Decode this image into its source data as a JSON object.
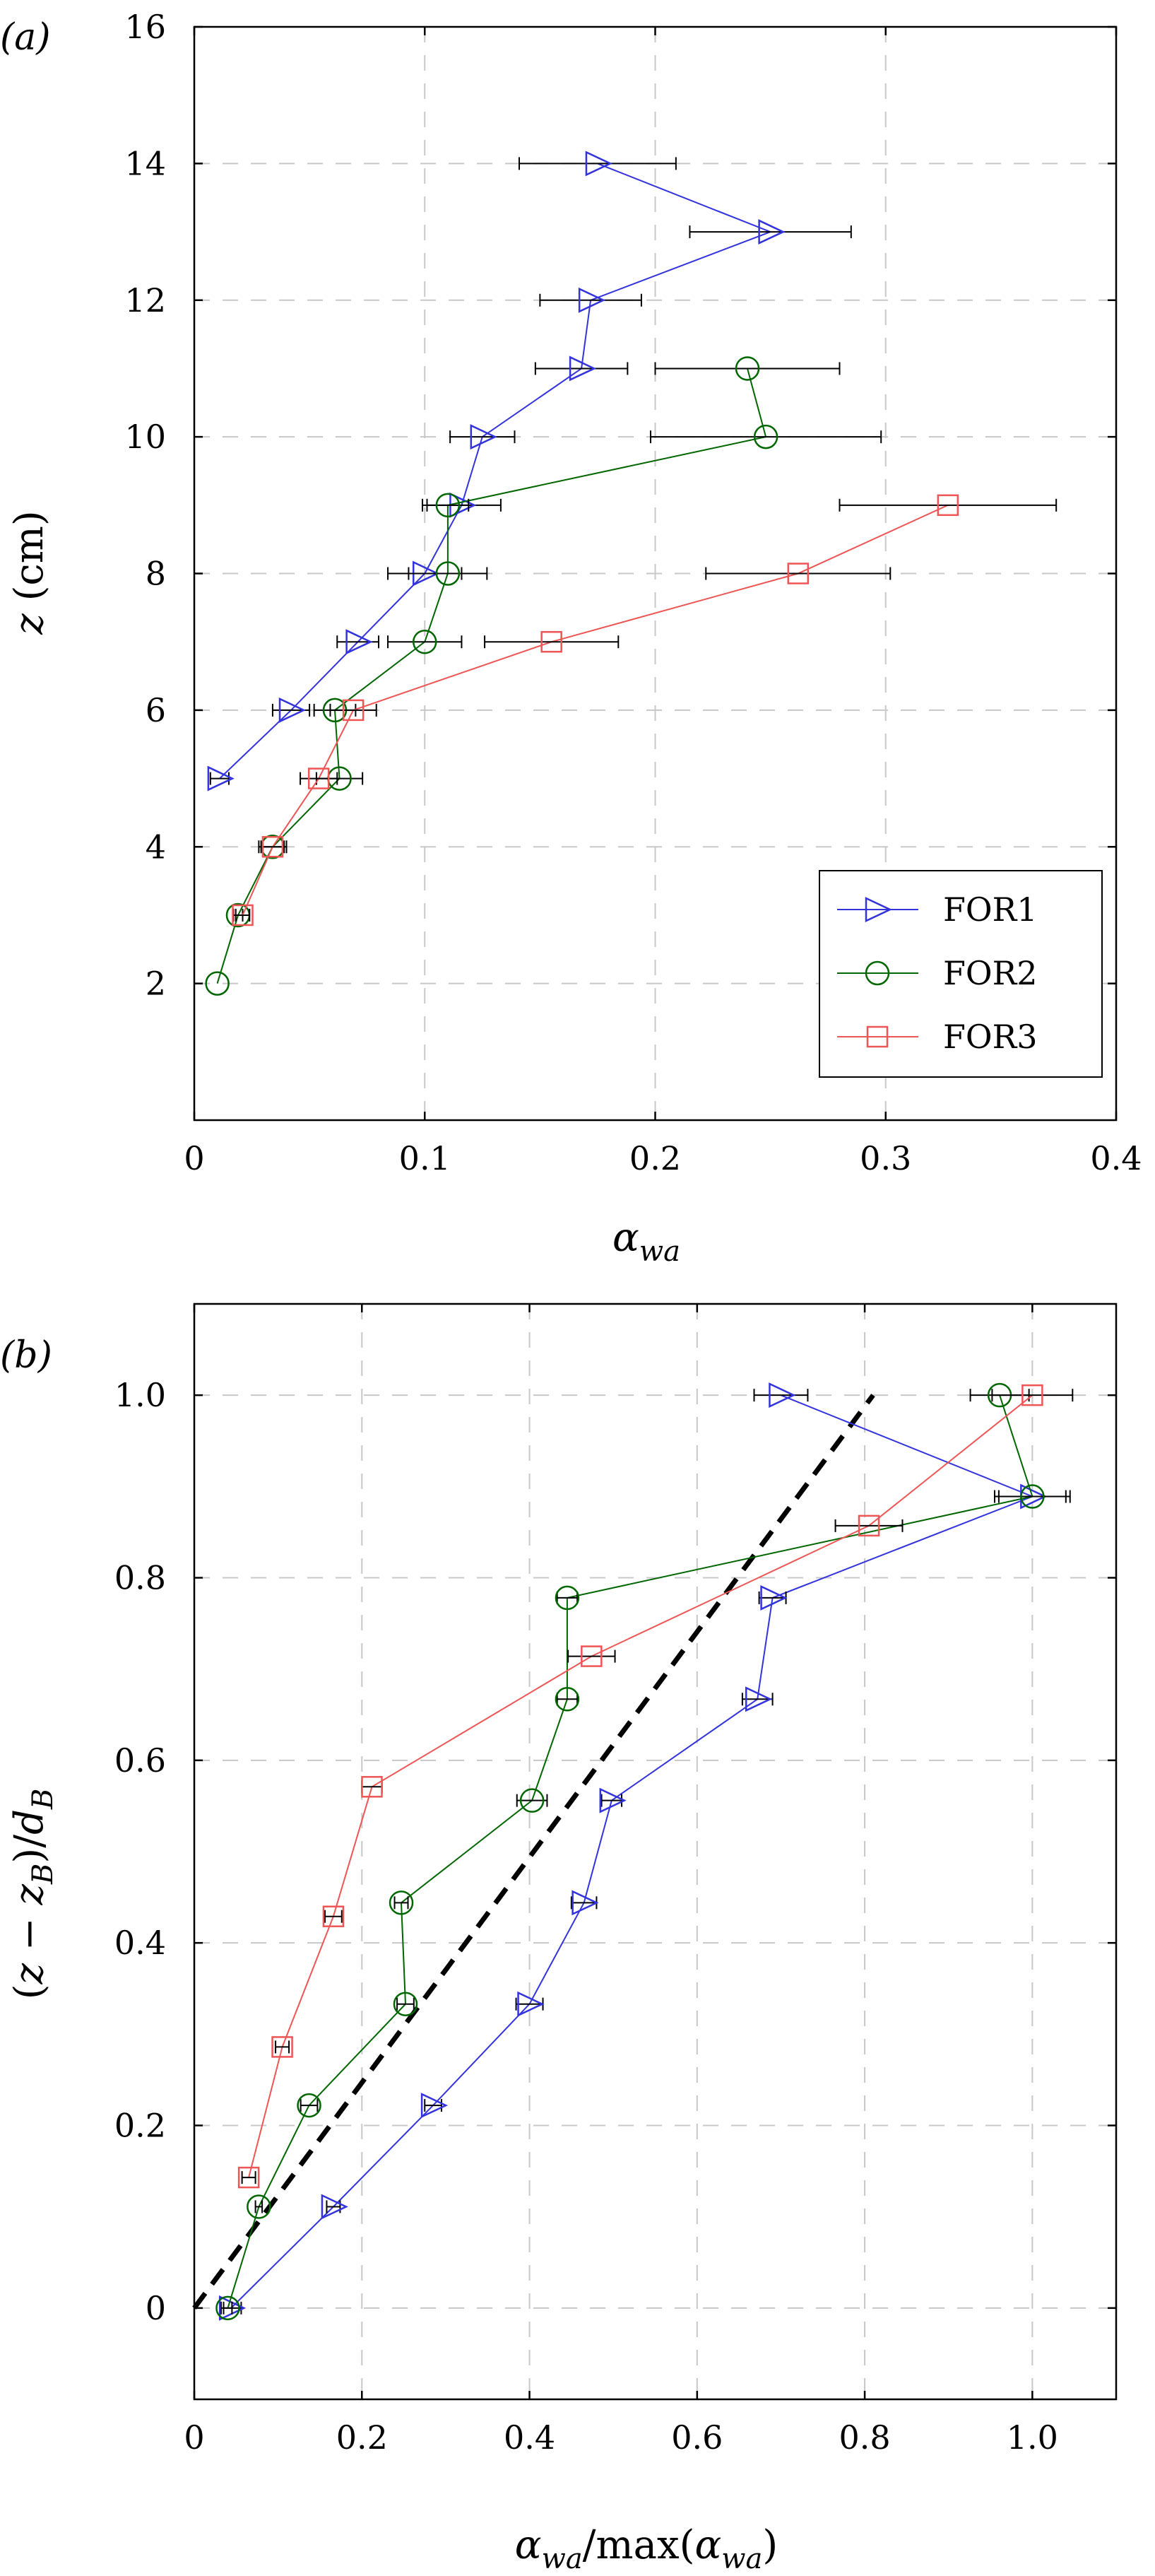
{
  "chart_data": [
    {
      "type": "line",
      "panel_label": "(a)",
      "xlabel": "α_wa",
      "ylabel": "z (cm)",
      "xlim": [
        0,
        0.4
      ],
      "ylim": [
        0,
        16
      ],
      "x_ticks": [
        0,
        0.1,
        0.2,
        0.3,
        0.4
      ],
      "x_tick_labels": [
        "0",
        "0.1",
        "0.2",
        "0.3",
        "0.4"
      ],
      "y_ticks": [
        2,
        4,
        6,
        8,
        10,
        12,
        14,
        16
      ],
      "y_tick_labels": [
        "2",
        "4",
        "6",
        "8",
        "10",
        "12",
        "14",
        "16"
      ],
      "grid": true,
      "legend_position": "lower-right",
      "series": [
        {
          "name": "FOR1",
          "color": "#3333dd",
          "marker": "triangle-right",
          "points": [
            {
              "x": 0.011,
              "y": 5,
              "err": 0.004
            },
            {
              "x": 0.042,
              "y": 6,
              "err": 0.008
            },
            {
              "x": 0.071,
              "y": 7,
              "err": 0.009
            },
            {
              "x": 0.1,
              "y": 8,
              "err": 0.016
            },
            {
              "x": 0.116,
              "y": 9,
              "err": 0.017
            },
            {
              "x": 0.125,
              "y": 10,
              "err": 0.014
            },
            {
              "x": 0.168,
              "y": 11,
              "err": 0.02
            },
            {
              "x": 0.172,
              "y": 12,
              "err": 0.022
            },
            {
              "x": 0.25,
              "y": 13,
              "err": 0.035
            },
            {
              "x": 0.175,
              "y": 14,
              "err": 0.034
            }
          ]
        },
        {
          "name": "FOR2",
          "color": "#006600",
          "marker": "circle",
          "points": [
            {
              "x": 0.01,
              "y": 2,
              "err": 0.0
            },
            {
              "x": 0.019,
              "y": 3,
              "err": 0.002
            },
            {
              "x": 0.034,
              "y": 4,
              "err": 0.006
            },
            {
              "x": 0.063,
              "y": 5,
              "err": 0.01
            },
            {
              "x": 0.061,
              "y": 6,
              "err": 0.009
            },
            {
              "x": 0.1,
              "y": 7,
              "err": 0.016
            },
            {
              "x": 0.11,
              "y": 8,
              "err": 0.017
            },
            {
              "x": 0.11,
              "y": 9,
              "err": 0.009
            },
            {
              "x": 0.248,
              "y": 10,
              "err": 0.05
            },
            {
              "x": 0.24,
              "y": 11,
              "err": 0.04
            }
          ]
        },
        {
          "name": "FOR3",
          "color": "#ee5555",
          "marker": "square",
          "points": [
            {
              "x": 0.021,
              "y": 3,
              "err": 0.003
            },
            {
              "x": 0.034,
              "y": 4,
              "err": 0.005
            },
            {
              "x": 0.054,
              "y": 5,
              "err": 0.008
            },
            {
              "x": 0.069,
              "y": 6,
              "err": 0.01
            },
            {
              "x": 0.155,
              "y": 7,
              "err": 0.029
            },
            {
              "x": 0.262,
              "y": 8,
              "err": 0.04
            },
            {
              "x": 0.327,
              "y": 9,
              "err": 0.047
            }
          ]
        }
      ]
    },
    {
      "type": "line",
      "panel_label": "(b)",
      "xlabel": "α_wa / max(α_wa)",
      "ylabel": "(z − z_B)/d_B",
      "xlim": [
        0,
        1.1
      ],
      "ylim": [
        -0.1,
        1.1
      ],
      "x_ticks": [
        0,
        0.2,
        0.4,
        0.6,
        0.8,
        1.0
      ],
      "x_tick_labels": [
        "0",
        "0.2",
        "0.4",
        "0.6",
        "0.8",
        "1.0"
      ],
      "y_ticks": [
        0,
        0.2,
        0.4,
        0.6,
        0.8,
        1.0
      ],
      "y_tick_labels": [
        "0",
        "0.2",
        "0.4",
        "0.6",
        "0.8",
        "1.0"
      ],
      "grid": true,
      "reference_line": {
        "style": "dashed",
        "color": "#000000",
        "x": [
          0,
          0.81
        ],
        "y": [
          0,
          1.0
        ]
      },
      "series": [
        {
          "name": "FOR1",
          "color": "#3333dd",
          "marker": "triangle-right",
          "points": [
            {
              "x": 0.044,
              "y": 0.0,
              "err": 0.012
            },
            {
              "x": 0.166,
              "y": 0.111,
              "err": 0.008
            },
            {
              "x": 0.285,
              "y": 0.222,
              "err": 0.01
            },
            {
              "x": 0.4,
              "y": 0.333,
              "err": 0.016
            },
            {
              "x": 0.465,
              "y": 0.444,
              "err": 0.015
            },
            {
              "x": 0.498,
              "y": 0.556,
              "err": 0.012
            },
            {
              "x": 0.672,
              "y": 0.667,
              "err": 0.018
            },
            {
              "x": 0.69,
              "y": 0.778,
              "err": 0.016
            },
            {
              "x": 1.0,
              "y": 0.889,
              "err": 0.045
            },
            {
              "x": 0.7,
              "y": 1.0,
              "err": 0.032
            }
          ]
        },
        {
          "name": "FOR2",
          "color": "#006600",
          "marker": "circle",
          "points": [
            {
              "x": 0.04,
              "y": 0.0,
              "err": 0.005
            },
            {
              "x": 0.077,
              "y": 0.111,
              "err": 0.004
            },
            {
              "x": 0.137,
              "y": 0.222,
              "err": 0.01
            },
            {
              "x": 0.252,
              "y": 0.333,
              "err": 0.01
            },
            {
              "x": 0.247,
              "y": 0.444,
              "err": 0.008
            },
            {
              "x": 0.403,
              "y": 0.556,
              "err": 0.018
            },
            {
              "x": 0.445,
              "y": 0.667,
              "err": 0.012
            },
            {
              "x": 0.445,
              "y": 0.778,
              "err": 0.012
            },
            {
              "x": 1.0,
              "y": 0.889,
              "err": 0.04
            },
            {
              "x": 0.961,
              "y": 1.0,
              "err": 0.035
            }
          ]
        },
        {
          "name": "FOR3",
          "color": "#ee5555",
          "marker": "square",
          "points": [
            {
              "x": 0.065,
              "y": 0.143,
              "err": 0.008
            },
            {
              "x": 0.105,
              "y": 0.286,
              "err": 0.008
            },
            {
              "x": 0.166,
              "y": 0.429,
              "err": 0.01
            },
            {
              "x": 0.212,
              "y": 0.571,
              "err": 0.012
            },
            {
              "x": 0.474,
              "y": 0.714,
              "err": 0.028
            },
            {
              "x": 0.805,
              "y": 0.857,
              "err": 0.04
            },
            {
              "x": 1.0,
              "y": 1.0,
              "err": 0.048
            }
          ]
        }
      ]
    }
  ]
}
